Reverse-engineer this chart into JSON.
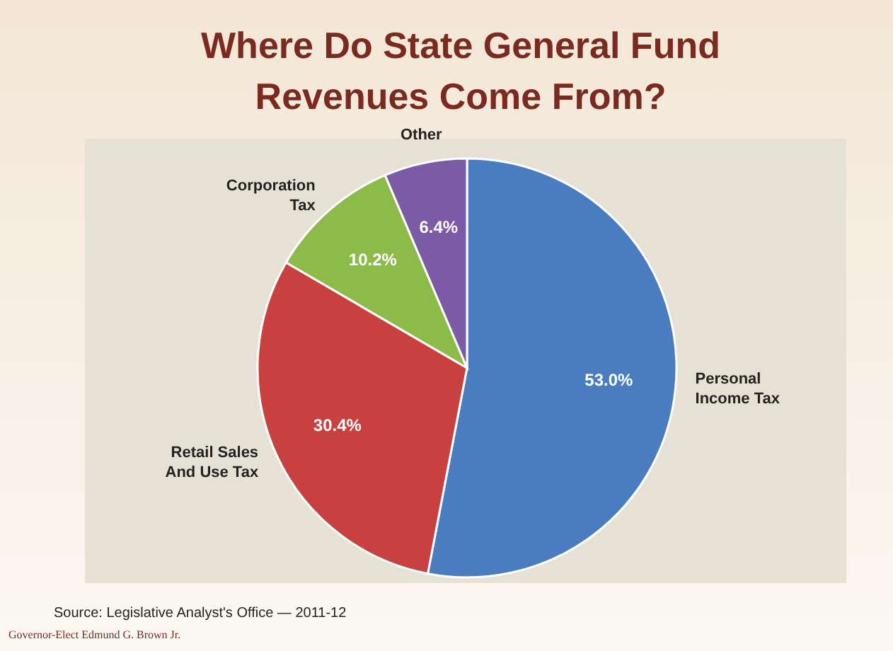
{
  "chart_data": {
    "type": "pie",
    "title": "Where Do State General Fund\nRevenues Come From?",
    "categories": [
      "Personal\nIncome Tax",
      "Retail Sales\nAnd Use Tax",
      "Corporation\nTax",
      "Other"
    ],
    "values": [
      53.0,
      30.4,
      10.2,
      6.4
    ],
    "colors": [
      "#4a7cc0",
      "#c8403f",
      "#8dbb4a",
      "#7b5aa6"
    ],
    "value_labels": [
      "53.0%",
      "30.4%",
      "10.2%",
      "6.4%"
    ],
    "annotations": [
      "Source: Legislative Analyst's Office — 2011-12",
      "Governor-Elect Edmund G. Brown Jr."
    ]
  }
}
